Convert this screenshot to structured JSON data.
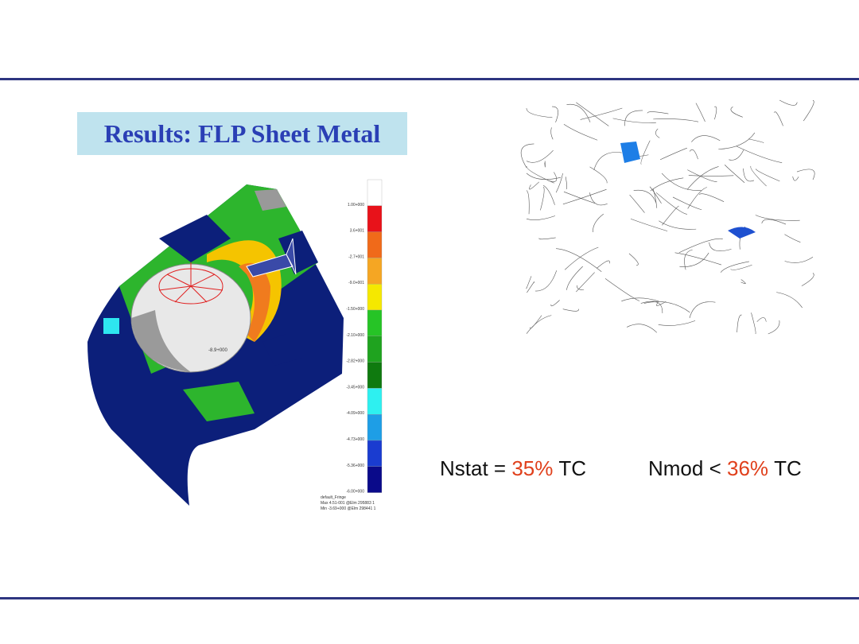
{
  "header": {
    "title": "Results: FLP Sheet Metal"
  },
  "legend": {
    "labels": [
      "1.00+000",
      "3.6+001",
      "-2.7+001",
      "-9.0+001",
      "-1.50+000",
      "-2.10+000",
      "-2.82+000",
      "-3.45+000",
      "-4.09+000",
      "-4.73+000",
      "-5.36+000",
      "-6.00+000"
    ],
    "footer": [
      "default_Fringe",
      "Max 4.51-001 @Elm 295883 1",
      "Min -3.69+000 @Elm 298441 1"
    ]
  },
  "dome_label": "-8.9+000",
  "results": [
    {
      "name": "Nstat",
      "relation": "=",
      "value": "35%",
      "unit": "TC"
    },
    {
      "name": "Nmod",
      "relation": "<",
      "value": "36%",
      "unit": "TC"
    }
  ]
}
